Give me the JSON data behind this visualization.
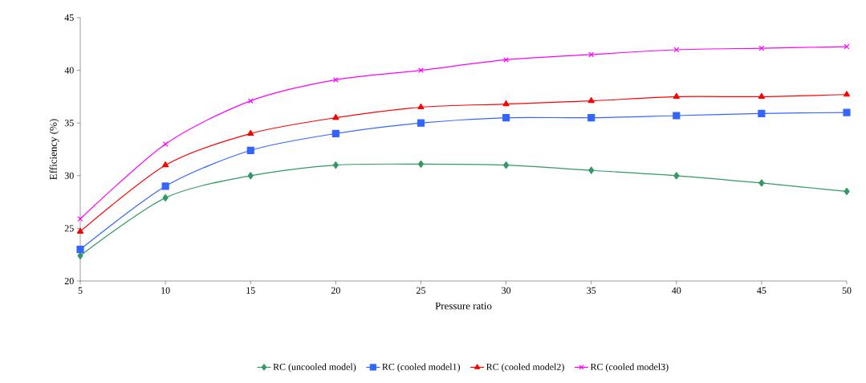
{
  "chart_data": {
    "type": "line",
    "xlabel": "Pressure ratio",
    "ylabel": "Efficiency (%)",
    "x": [
      5,
      10,
      15,
      20,
      25,
      30,
      35,
      40,
      45,
      50
    ],
    "xlim": [
      5,
      50
    ],
    "xticks": [
      5,
      10,
      15,
      20,
      25,
      30,
      35,
      40,
      45,
      50
    ],
    "ylim": [
      20,
      45
    ],
    "yticks": [
      20,
      25,
      30,
      35,
      40,
      45
    ],
    "grid": false,
    "legend": "bottom",
    "series": [
      {
        "name": "RC (uncooled model)",
        "color": "#339966",
        "marker": "diamond",
        "values": [
          22.4,
          27.9,
          30.0,
          31.0,
          31.1,
          31.0,
          30.5,
          30.0,
          29.3,
          28.5
        ]
      },
      {
        "name": "RC (cooled model1)",
        "color": "#3366ff",
        "marker": "square",
        "values": [
          23.0,
          29.0,
          32.4,
          34.0,
          35.0,
          35.5,
          35.5,
          35.7,
          35.9,
          36.0
        ]
      },
      {
        "name": "RC (cooled model2)",
        "color": "#ff0000",
        "marker": "triangle",
        "values": [
          24.7,
          31.0,
          34.0,
          35.5,
          36.5,
          36.8,
          37.1,
          37.5,
          37.5,
          37.7
        ]
      },
      {
        "name": "RC (cooled model3)",
        "color": "#ff00ff",
        "marker": "cross",
        "values": [
          25.9,
          33.0,
          37.1,
          39.1,
          40.0,
          41.0,
          41.5,
          41.95,
          42.1,
          42.25
        ]
      }
    ]
  }
}
